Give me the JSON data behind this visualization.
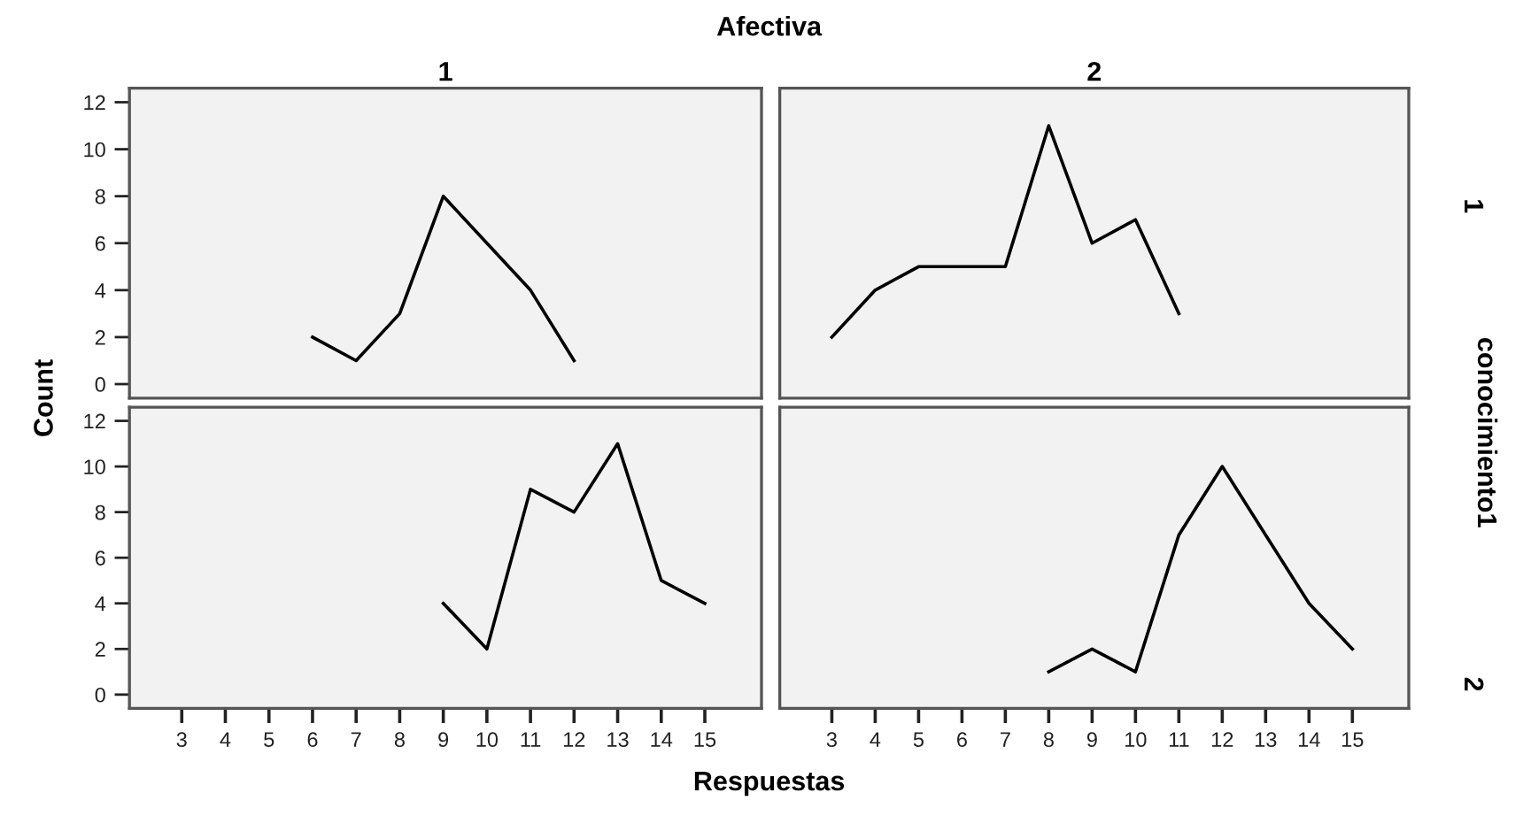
{
  "chart_data": [
    {
      "type": "line",
      "title": "1",
      "xlabel": "Respuestas",
      "ylabel": "Count",
      "annotations": [
        "Afectiva",
        "conocimiento1"
      ],
      "x": [
        6,
        7,
        8,
        9,
        10,
        11,
        12
      ],
      "series": [
        {
          "color": "#000000",
          "values": [
            2,
            1,
            3,
            8,
            6,
            4,
            1
          ]
        }
      ],
      "xlim": [
        1.8,
        16.3
      ],
      "xticks": [
        3,
        4,
        5,
        6,
        7,
        8,
        9,
        10,
        11,
        12,
        13,
        14,
        15
      ],
      "ylim": [
        -0.6,
        12.6
      ],
      "yticks": [
        0,
        2,
        4,
        6,
        8,
        10,
        12
      ],
      "tick_labels": "y",
      "grid": false
    },
    {
      "type": "line",
      "title": "2",
      "y2label": "1",
      "x": [
        3,
        4,
        5,
        6,
        7,
        8,
        9,
        10,
        11
      ],
      "series": [
        {
          "color": "#000000",
          "values": [
            2,
            4,
            5,
            5,
            5,
            11,
            6,
            7,
            3
          ]
        }
      ],
      "xlim": [
        1.8,
        16.3
      ],
      "xticks": [
        3,
        4,
        5,
        6,
        7,
        8,
        9,
        10,
        11,
        12,
        13,
        14,
        15
      ],
      "ylim": [
        -0.6,
        12.6
      ],
      "yticks": [
        0,
        2,
        4,
        6,
        8,
        10,
        12
      ],
      "tick_labels": false,
      "grid": false
    },
    {
      "type": "line",
      "x": [
        9,
        10,
        11,
        12,
        13,
        14,
        15
      ],
      "series": [
        {
          "color": "#000000",
          "values": [
            4,
            2,
            9,
            8,
            11,
            5,
            4
          ]
        }
      ],
      "xlim": [
        1.8,
        16.3
      ],
      "xticks": [
        3,
        4,
        5,
        6,
        7,
        8,
        9,
        10,
        11,
        12,
        13,
        14,
        15
      ],
      "ylim": [
        -0.6,
        12.6
      ],
      "yticks": [
        0,
        2,
        4,
        6,
        8,
        10,
        12
      ],
      "grid": false
    },
    {
      "type": "line",
      "y2label": "2",
      "x": [
        8,
        9,
        10,
        11,
        12,
        13,
        14,
        15
      ],
      "series": [
        {
          "color": "#000000",
          "values": [
            1,
            2,
            1,
            7,
            10,
            7,
            4,
            2
          ]
        }
      ],
      "xlim": [
        1.8,
        16.3
      ],
      "xticks": [
        3,
        4,
        5,
        6,
        7,
        8,
        9,
        10,
        11,
        12,
        13,
        14,
        15
      ],
      "ylim": [
        -0.6,
        12.6
      ],
      "yticks": [
        0,
        2,
        4,
        6,
        8,
        10,
        12
      ],
      "tick_labels": "x",
      "grid": false
    }
  ]
}
